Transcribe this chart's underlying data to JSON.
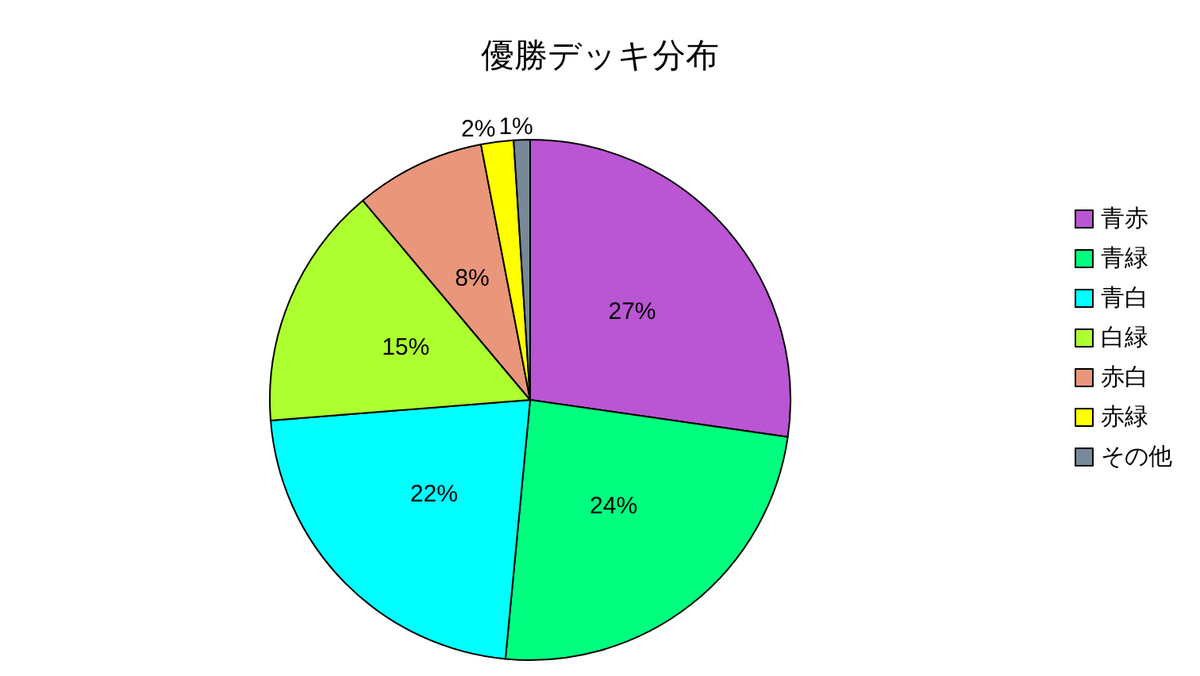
{
  "chart_data": {
    "type": "pie",
    "title": "優勝デッキ分布",
    "categories": [
      "青赤",
      "青緑",
      "青白",
      "白緑",
      "赤白",
      "赤緑",
      "その他"
    ],
    "values": [
      27,
      24,
      22,
      15,
      8,
      2,
      1
    ],
    "colors": [
      "#ba55d3",
      "#00ff7f",
      "#00ffff",
      "#adff2f",
      "#e9967a",
      "#ffff00",
      "#778899"
    ],
    "value_labels": [
      "27%",
      "24%",
      "22%",
      "15%",
      "8%",
      "2%",
      "1%"
    ],
    "legend": "right"
  }
}
